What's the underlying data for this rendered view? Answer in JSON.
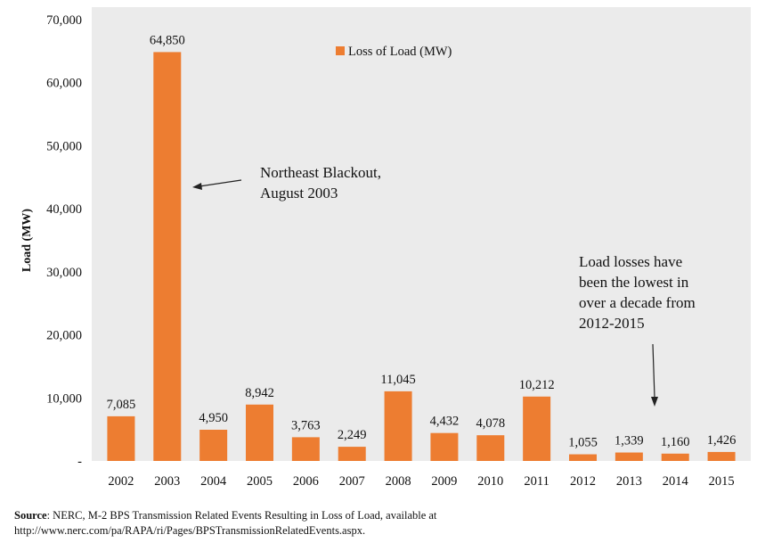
{
  "chart_data": {
    "type": "bar",
    "categories": [
      "2002",
      "2003",
      "2004",
      "2005",
      "2006",
      "2007",
      "2008",
      "2009",
      "2010",
      "2011",
      "2012",
      "2013",
      "2014",
      "2015"
    ],
    "series": [
      {
        "name": "Loss of Load (MW)",
        "values": [
          7085,
          64850,
          4950,
          8942,
          3763,
          2249,
          11045,
          4432,
          4078,
          10212,
          1055,
          1339,
          1160,
          1426
        ]
      }
    ],
    "data_labels": [
      "7,085",
      "64,850",
      "4,950",
      "8,942",
      "3,763",
      "2,249",
      "11,045",
      "4,432",
      "4,078",
      "10,212",
      "1,055",
      "1,339",
      "1,160",
      "1,426"
    ],
    "ylabel": "Load (MW)",
    "xlabel": "",
    "ylim": [
      0,
      70000
    ],
    "yticks": [
      0,
      10000,
      20000,
      30000,
      40000,
      50000,
      60000,
      70000
    ],
    "ytick_labels": [
      "-",
      "10,000",
      "20,000",
      "30,000",
      "40,000",
      "50,000",
      "60,000",
      "70,000"
    ],
    "legend_position": "top-center",
    "grid": false,
    "colors": {
      "bar": "#ED7D31",
      "plot_background": "#EBEBEB",
      "text": "#111111"
    },
    "annotations": [
      {
        "lines": [
          "Northeast Blackout,",
          "August 2003"
        ],
        "points_to": "2003"
      },
      {
        "lines": [
          "Load losses have",
          "been the lowest in",
          "over a decade from",
          "2012-2015"
        ],
        "points_to": "2012-2015"
      }
    ]
  },
  "source": {
    "label": "Source",
    "text": ": NERC, M-2 BPS Transmission Related Events Resulting in Loss of Load, available at",
    "url_line": "http://www.nerc.com/pa/RAPA/ri/Pages/BPSTransmissionRelatedEvents.aspx."
  }
}
